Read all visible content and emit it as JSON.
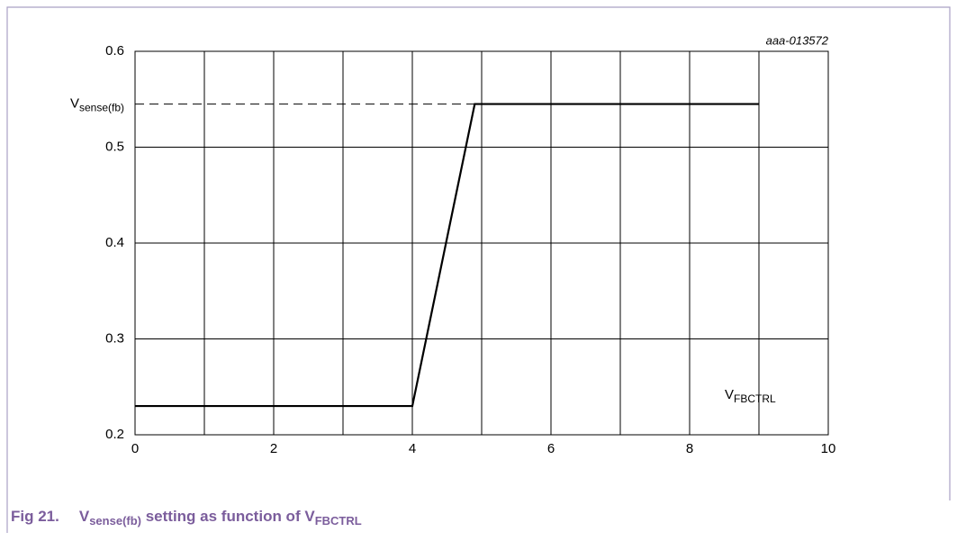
{
  "chart_data": {
    "type": "line",
    "annotation": "aaa-013572",
    "xlabel": "V",
    "xlabel_sub": "FBCTRL",
    "caption": {
      "number": "Fig 21.",
      "parts": [
        {
          "text": "V"
        },
        {
          "text": "sense(fb)",
          "sub": true
        },
        {
          "text": " setting as function of "
        },
        {
          "text": "V"
        },
        {
          "text": "FBCTRL",
          "sub": true
        }
      ]
    },
    "x": [
      0,
      4,
      4.9,
      9
    ],
    "series": [
      {
        "color": "#000000",
        "values": [
          0.23,
          0.23,
          0.545,
          0.545
        ]
      }
    ],
    "xlim": [
      0,
      10
    ],
    "xticks": [
      0,
      2,
      4,
      6,
      8,
      10
    ],
    "minor_xticks": [
      1,
      3,
      5,
      7,
      9
    ],
    "ylim": [
      0.2,
      0.6
    ],
    "yticks": [
      0.2,
      0.3,
      0.4,
      0.5,
      0.6
    ],
    "reference_line": {
      "value": 0.545,
      "x_end": 4.9,
      "label": "V",
      "label_sub": "sense(fb)",
      "style": "dashed"
    },
    "grid": true
  }
}
